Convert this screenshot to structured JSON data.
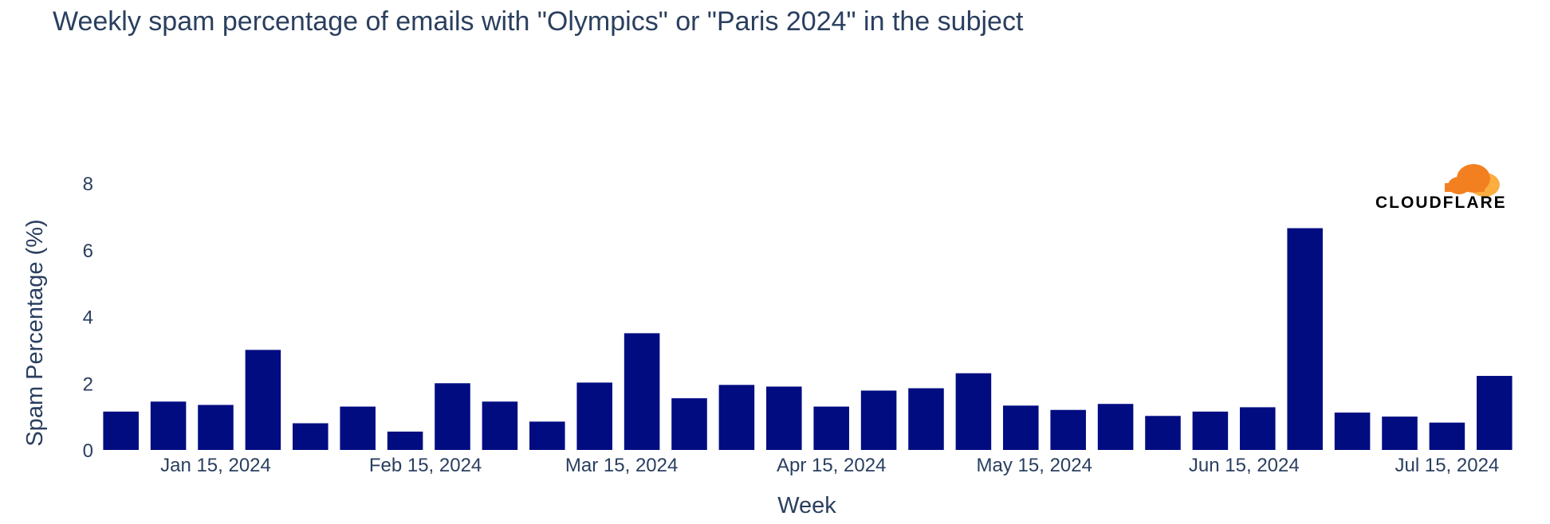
{
  "chart_data": {
    "type": "bar",
    "title": "Weekly spam percentage of emails with \"Olympics\" or \"Paris 2024\" in the subject",
    "xlabel": "Week",
    "ylabel": "Spam Percentage (%)",
    "ylim": [
      0,
      8
    ],
    "yticks": [
      0,
      2,
      4,
      6,
      8
    ],
    "xticks": [
      "Jan 15, 2024",
      "Feb 15, 2024",
      "Mar 15, 2024",
      "Apr 15, 2024",
      "May 15, 2024",
      "Jun 15, 2024",
      "Jul 15, 2024"
    ],
    "xtick_dates": [
      "2024-01-15",
      "2024-02-15",
      "2024-03-15",
      "2024-04-15",
      "2024-05-15",
      "2024-06-15",
      "2024-07-15"
    ],
    "x": [
      "2024-01-01",
      "2024-01-08",
      "2024-01-15",
      "2024-01-22",
      "2024-01-29",
      "2024-02-05",
      "2024-02-12",
      "2024-02-19",
      "2024-02-26",
      "2024-03-04",
      "2024-03-11",
      "2024-03-18",
      "2024-03-25",
      "2024-04-01",
      "2024-04-08",
      "2024-04-15",
      "2024-04-22",
      "2024-04-29",
      "2024-05-06",
      "2024-05-13",
      "2024-05-20",
      "2024-05-27",
      "2024-06-03",
      "2024-06-10",
      "2024-06-17",
      "2024-06-24",
      "2024-07-01",
      "2024-07-08",
      "2024-07-15",
      "2024-07-22"
    ],
    "values": [
      1.15,
      1.45,
      1.35,
      3.0,
      0.8,
      1.3,
      0.55,
      2.0,
      1.45,
      0.85,
      2.02,
      3.5,
      1.55,
      1.95,
      1.9,
      1.3,
      1.78,
      1.85,
      2.3,
      1.33,
      1.2,
      1.38,
      1.02,
      1.15,
      1.28,
      6.65,
      1.12,
      1.0,
      0.82,
      2.22
    ],
    "bar_color": "#010c81",
    "grid": false,
    "logo": "CLOUDFLARE",
    "logo_colors": [
      "#f38020",
      "#faae40"
    ]
  }
}
